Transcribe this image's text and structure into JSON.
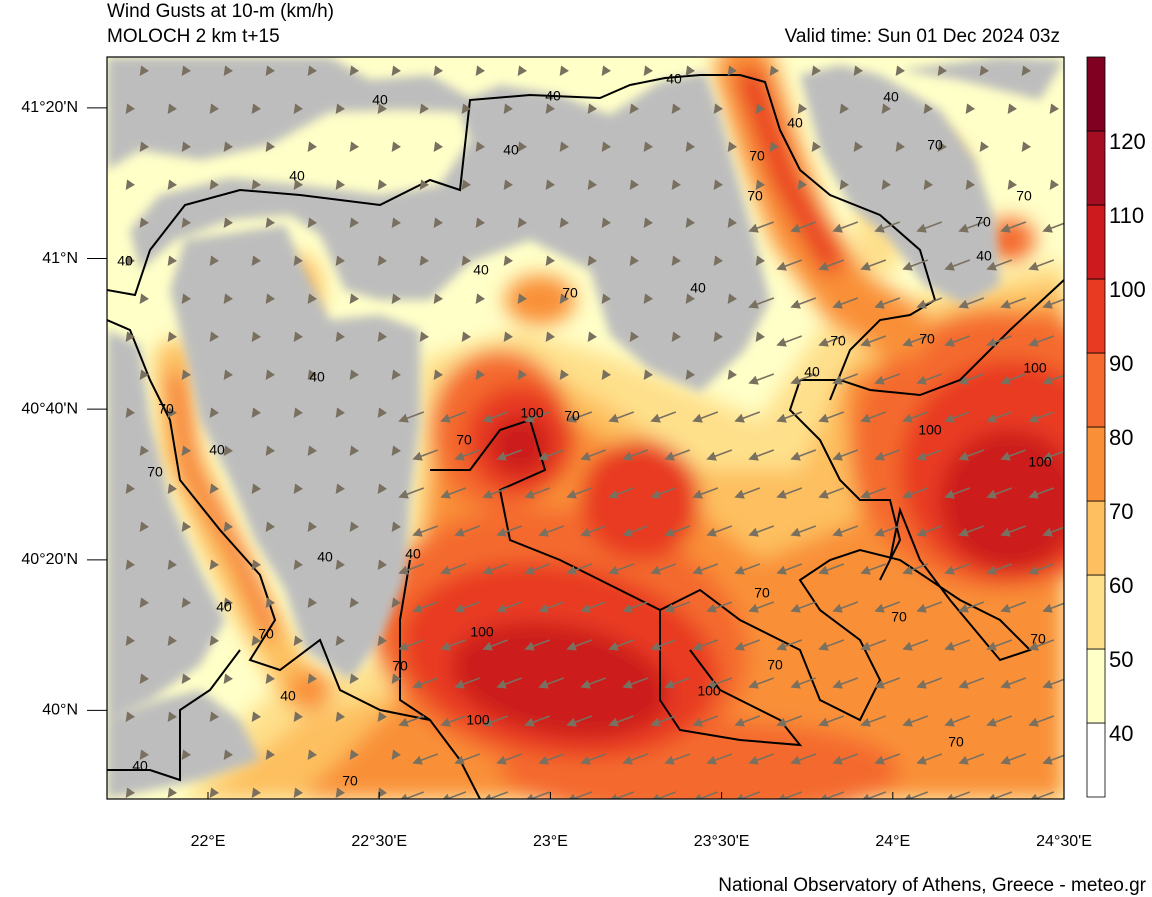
{
  "header": {
    "title": "Wind Gusts at 10-m (km/h)",
    "subtitle": "MOLOCH 2 km t+15",
    "valid_time": "Valid time: Sun 01 Dec 2024 03z"
  },
  "map": {
    "lon_range": [
      21.705,
      24.5
    ],
    "lat_range": [
      39.804,
      41.446
    ],
    "lon_ticks": [
      {
        "value": 22,
        "label": "22°E"
      },
      {
        "value": 22.5,
        "label": "22°30'E"
      },
      {
        "value": 23,
        "label": "23°E"
      },
      {
        "value": 23.5,
        "label": "23°30'E"
      },
      {
        "value": 24,
        "label": "24°E"
      },
      {
        "value": 24.5,
        "label": "24°30'E"
      }
    ],
    "lat_ticks": [
      {
        "value": 40,
        "label": "40°N"
      },
      {
        "value": 40.3333,
        "label": "40°20'N"
      },
      {
        "value": 40.6667,
        "label": "40°40'N"
      },
      {
        "value": 41,
        "label": "41°N"
      },
      {
        "value": 41.3333,
        "label": "41°20'N"
      }
    ],
    "contour_labels": [
      "40",
      "40",
      "40",
      "40",
      "40",
      "40",
      "70",
      "70",
      "70",
      "70",
      "70",
      "40",
      "40",
      "40",
      "40",
      "70",
      "40",
      "70",
      "70",
      "40",
      "100",
      "40",
      "70",
      "100",
      "70",
      "100",
      "70",
      "40",
      "70",
      "100",
      "40",
      "40",
      "70",
      "40",
      "70",
      "70",
      "100",
      "70",
      "70",
      "70",
      "100",
      "40",
      "100",
      "70",
      "40",
      "70"
    ]
  },
  "colorbar": {
    "levels": [
      40,
      50,
      60,
      70,
      80,
      90,
      100,
      110,
      120
    ],
    "colors": [
      "#ffffff",
      "#ffffc8",
      "#fee08b",
      "#fdbf5f",
      "#f99038",
      "#f46a2f",
      "#e83a22",
      "#cc1a1f",
      "#a50d22",
      "#7f0020"
    ]
  },
  "footer": {
    "credit": "National Observatory of Athens, Greece - meteo.gr"
  }
}
